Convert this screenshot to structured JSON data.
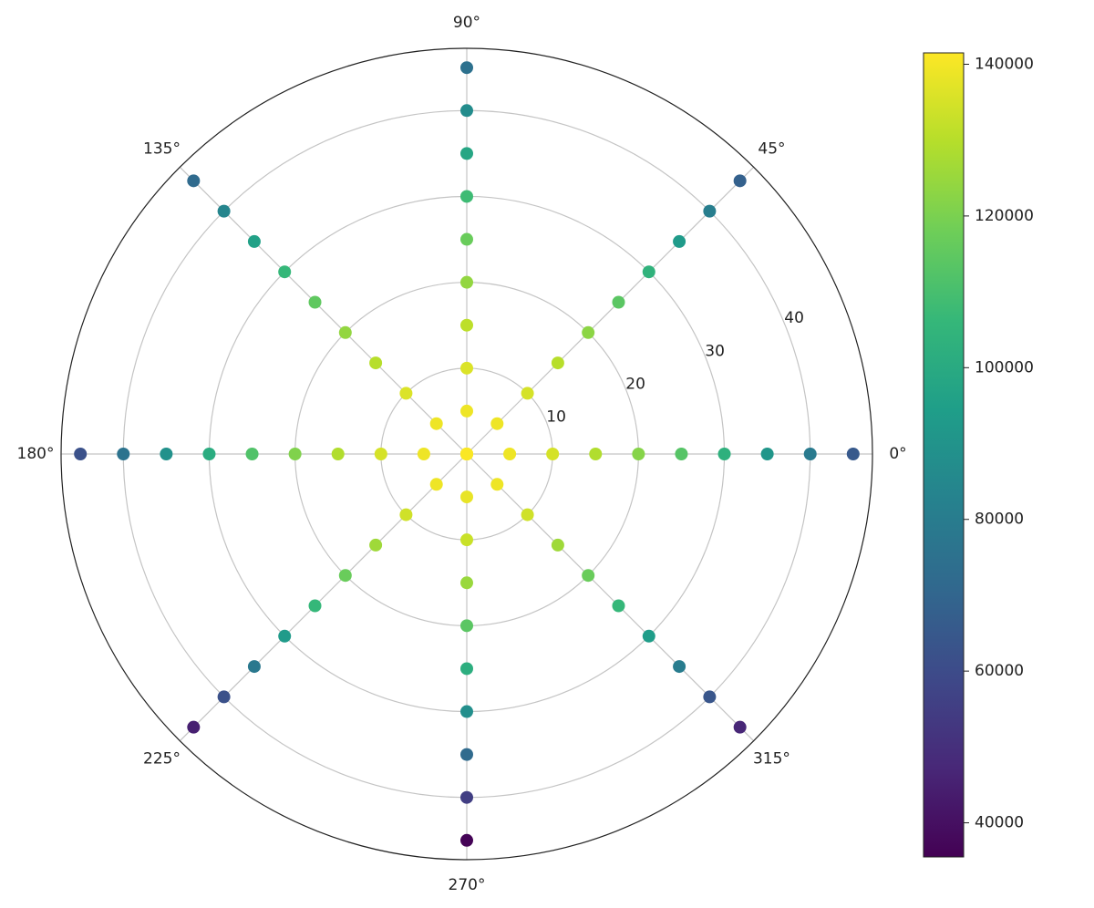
{
  "chart_data": {
    "type": "polar_scatter",
    "theta": [
      0,
      0,
      0,
      0,
      0,
      0,
      0,
      0,
      0,
      0,
      45,
      45,
      45,
      45,
      45,
      45,
      45,
      45,
      45,
      45,
      90,
      90,
      90,
      90,
      90,
      90,
      90,
      90,
      90,
      90,
      135,
      135,
      135,
      135,
      135,
      135,
      135,
      135,
      135,
      135,
      180,
      180,
      180,
      180,
      180,
      180,
      180,
      180,
      180,
      180,
      225,
      225,
      225,
      225,
      225,
      225,
      225,
      225,
      225,
      225,
      270,
      270,
      270,
      270,
      270,
      270,
      270,
      270,
      270,
      270,
      315,
      315,
      315,
      315,
      315,
      315,
      315,
      315,
      315,
      315
    ],
    "r": [
      0,
      5,
      10,
      15,
      20,
      25,
      30,
      35,
      40,
      45,
      0,
      5,
      10,
      15,
      20,
      25,
      30,
      35,
      40,
      45,
      0,
      5,
      10,
      15,
      20,
      25,
      30,
      35,
      40,
      45,
      0,
      5,
      10,
      15,
      20,
      25,
      30,
      35,
      40,
      45,
      0,
      5,
      10,
      15,
      20,
      25,
      30,
      35,
      40,
      45,
      0,
      5,
      10,
      15,
      20,
      25,
      30,
      35,
      40,
      45,
      0,
      5,
      10,
      15,
      20,
      25,
      30,
      35,
      40,
      45,
      0,
      5,
      10,
      15,
      20,
      25,
      30,
      35,
      40,
      45
    ],
    "values": [
      141000,
      139000,
      135000,
      129000,
      122000,
      113000,
      103000,
      91000,
      79000,
      65000,
      141000,
      139000,
      135000,
      130000,
      123000,
      114000,
      104000,
      93000,
      81000,
      68000,
      141000,
      139000,
      136000,
      131000,
      124000,
      117000,
      108000,
      98000,
      87000,
      75000,
      141000,
      139000,
      136000,
      130000,
      124000,
      115000,
      106000,
      96000,
      84000,
      72000,
      141000,
      139000,
      135000,
      129000,
      121000,
      112000,
      101000,
      89000,
      76000,
      62000,
      141000,
      139000,
      134000,
      126000,
      117000,
      106000,
      93000,
      78000,
      62000,
      45000,
      141000,
      138000,
      133000,
      125000,
      114000,
      102000,
      88000,
      72000,
      55000,
      36000,
      141000,
      139000,
      134000,
      126000,
      117000,
      106000,
      94000,
      80000,
      64000,
      47000
    ],
    "colormap": "viridis",
    "rlim": [
      0,
      47.25
    ],
    "rticks": [
      10,
      20,
      30,
      40
    ],
    "thetaticks": [
      {
        "value": 0,
        "label": "0°"
      },
      {
        "value": 45,
        "label": "45°"
      },
      {
        "value": 90,
        "label": "90°"
      },
      {
        "value": 135,
        "label": "135°"
      },
      {
        "value": 180,
        "label": "180°"
      },
      {
        "value": 225,
        "label": "225°"
      },
      {
        "value": 270,
        "label": "270°"
      },
      {
        "value": 315,
        "label": "315°"
      }
    ],
    "clim": [
      35500,
      141500
    ],
    "cticks": [
      40000,
      60000,
      80000,
      100000,
      120000,
      140000
    ],
    "grid": true
  }
}
